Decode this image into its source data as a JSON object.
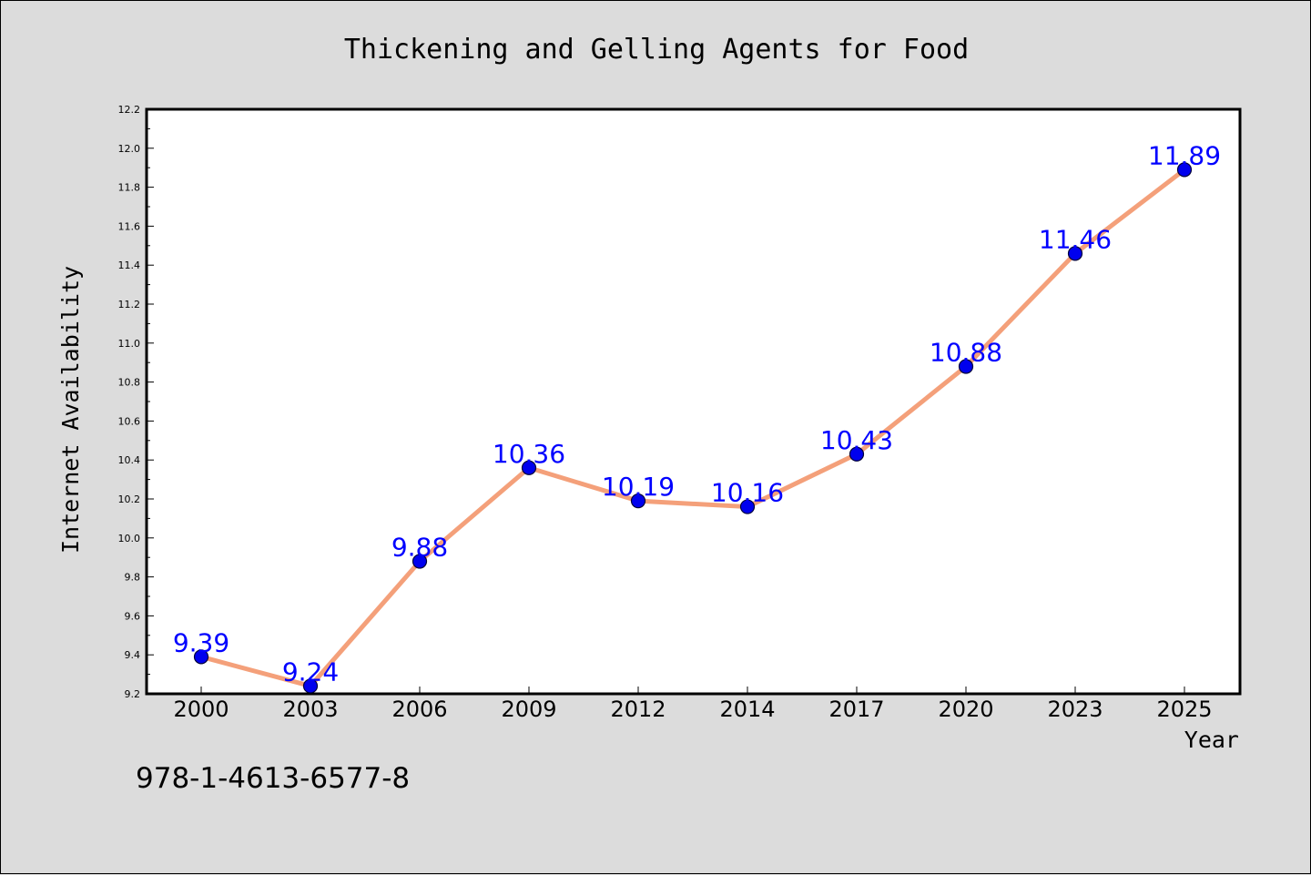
{
  "chart_data": {
    "type": "line",
    "title": "Thickening and Gelling Agents for Food",
    "xlabel": "Year",
    "ylabel": "Internet Availability",
    "categories": [
      "2000",
      "2003",
      "2006",
      "2009",
      "2012",
      "2014",
      "2017",
      "2020",
      "2023",
      "2025"
    ],
    "series": [
      {
        "values": [
          9.39,
          9.24,
          9.88,
          10.36,
          10.19,
          10.16,
          10.43,
          10.88,
          11.46,
          11.89
        ],
        "labels": [
          "9.39",
          "9.24",
          "9.88",
          "10.36",
          "10.19",
          "10.16",
          "10.43",
          "10.88",
          "11.46",
          "11.89"
        ]
      }
    ],
    "ylim": [
      9.2,
      12.2
    ],
    "yticks": [
      "9.2",
      "9.4",
      "9.6",
      "9.8",
      "10.0",
      "10.2",
      "10.4",
      "10.6",
      "10.8",
      "11.0",
      "11.2",
      "11.4",
      "11.6",
      "11.8",
      "12.0",
      "12.2"
    ],
    "grid": false,
    "legend": "none",
    "colors": {
      "line": "#f4a07a",
      "marker": "#0000ee",
      "marker_edge": "#00003a",
      "data_label": "#0000ff"
    }
  },
  "footer_text": "978-1-4613-6577-8"
}
